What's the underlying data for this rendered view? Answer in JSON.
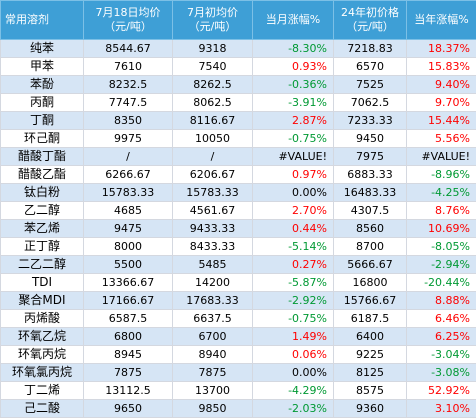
{
  "header": {
    "col_name": "常用溶剂",
    "col_jul18": "7月18日均价\n（元/吨）",
    "col_jul1": "7月初均价\n（元/吨）",
    "col_month_chg": "当月涨幅%",
    "col_year_start": "24年初价格\n（元/吨）",
    "col_year_chg": "当年涨幅%"
  },
  "rows": [
    {
      "name": "纯苯",
      "jul18": "8544.67",
      "jul1": "9318",
      "month_chg": "-8.30%",
      "month_dir": "neg",
      "year_start": "7218.83",
      "year_chg": "18.37%",
      "year_dir": "pos"
    },
    {
      "name": "甲苯",
      "jul18": "7610",
      "jul1": "7540",
      "month_chg": "0.93%",
      "month_dir": "pos",
      "year_start": "6570",
      "year_chg": "15.83%",
      "year_dir": "pos"
    },
    {
      "name": "苯酚",
      "jul18": "8232.5",
      "jul1": "8262.5",
      "month_chg": "-0.36%",
      "month_dir": "neg",
      "year_start": "7525",
      "year_chg": "9.40%",
      "year_dir": "pos"
    },
    {
      "name": "丙酮",
      "jul18": "7747.5",
      "jul1": "8062.5",
      "month_chg": "-3.91%",
      "month_dir": "neg",
      "year_start": "7062.5",
      "year_chg": "9.70%",
      "year_dir": "pos"
    },
    {
      "name": "丁酮",
      "jul18": "8350",
      "jul1": "8116.67",
      "month_chg": "2.87%",
      "month_dir": "pos",
      "year_start": "7233.33",
      "year_chg": "15.44%",
      "year_dir": "pos"
    },
    {
      "name": "环己酮",
      "jul18": "9975",
      "jul1": "10050",
      "month_chg": "-0.75%",
      "month_dir": "neg",
      "year_start": "9450",
      "year_chg": "5.56%",
      "year_dir": "pos"
    },
    {
      "name": "醋酸丁酯",
      "jul18": "/",
      "jul1": "/",
      "month_chg": "#VALUE!",
      "month_dir": "neu",
      "year_start": "7975",
      "year_chg": "#VALUE!",
      "year_dir": "neu"
    },
    {
      "name": "醋酸乙酯",
      "jul18": "6266.67",
      "jul1": "6206.67",
      "month_chg": "0.97%",
      "month_dir": "pos",
      "year_start": "6883.33",
      "year_chg": "-8.96%",
      "year_dir": "neg"
    },
    {
      "name": "钛白粉",
      "jul18": "15783.33",
      "jul1": "15783.33",
      "month_chg": "0.00%",
      "month_dir": "neu",
      "year_start": "16483.33",
      "year_chg": "-4.25%",
      "year_dir": "neg"
    },
    {
      "name": "乙二醇",
      "jul18": "4685",
      "jul1": "4561.67",
      "month_chg": "2.70%",
      "month_dir": "pos",
      "year_start": "4307.5",
      "year_chg": "8.76%",
      "year_dir": "pos"
    },
    {
      "name": "苯乙烯",
      "jul18": "9475",
      "jul1": "9433.33",
      "month_chg": "0.44%",
      "month_dir": "pos",
      "year_start": "8560",
      "year_chg": "10.69%",
      "year_dir": "pos"
    },
    {
      "name": "正丁醇",
      "jul18": "8000",
      "jul1": "8433.33",
      "month_chg": "-5.14%",
      "month_dir": "neg",
      "year_start": "8700",
      "year_chg": "-8.05%",
      "year_dir": "neg"
    },
    {
      "name": "二乙二醇",
      "jul18": "5500",
      "jul1": "5485",
      "month_chg": "0.27%",
      "month_dir": "pos",
      "year_start": "5666.67",
      "year_chg": "-2.94%",
      "year_dir": "neg"
    },
    {
      "name": "TDI",
      "jul18": "13366.67",
      "jul1": "14200",
      "month_chg": "-5.87%",
      "month_dir": "neg",
      "year_start": "16800",
      "year_chg": "-20.44%",
      "year_dir": "neg"
    },
    {
      "name": "聚合MDI",
      "jul18": "17166.67",
      "jul1": "17683.33",
      "month_chg": "-2.92%",
      "month_dir": "neg",
      "year_start": "15766.67",
      "year_chg": "8.88%",
      "year_dir": "pos"
    },
    {
      "name": "丙烯酸",
      "jul18": "6587.5",
      "jul1": "6637.5",
      "month_chg": "-0.75%",
      "month_dir": "neg",
      "year_start": "6187.5",
      "year_chg": "6.46%",
      "year_dir": "pos"
    },
    {
      "name": "环氧乙烷",
      "jul18": "6800",
      "jul1": "6700",
      "month_chg": "1.49%",
      "month_dir": "pos",
      "year_start": "6400",
      "year_chg": "6.25%",
      "year_dir": "pos"
    },
    {
      "name": "环氧丙烷",
      "jul18": "8945",
      "jul1": "8940",
      "month_chg": "0.06%",
      "month_dir": "pos",
      "year_start": "9225",
      "year_chg": "-3.04%",
      "year_dir": "neg"
    },
    {
      "name": "环氧氯丙烷",
      "jul18": "7875",
      "jul1": "7875",
      "month_chg": "0.00%",
      "month_dir": "neu",
      "year_start": "8125",
      "year_chg": "-3.08%",
      "year_dir": "neg"
    },
    {
      "name": "丁二烯",
      "jul18": "13112.5",
      "jul1": "13700",
      "month_chg": "-4.29%",
      "month_dir": "neg",
      "year_start": "8575",
      "year_chg": "52.92%",
      "year_dir": "pos"
    },
    {
      "name": "己二酸",
      "jul18": "9650",
      "jul1": "9850",
      "month_chg": "-2.03%",
      "month_dir": "neg",
      "year_start": "9360",
      "year_chg": "3.10%",
      "year_dir": "pos"
    }
  ]
}
